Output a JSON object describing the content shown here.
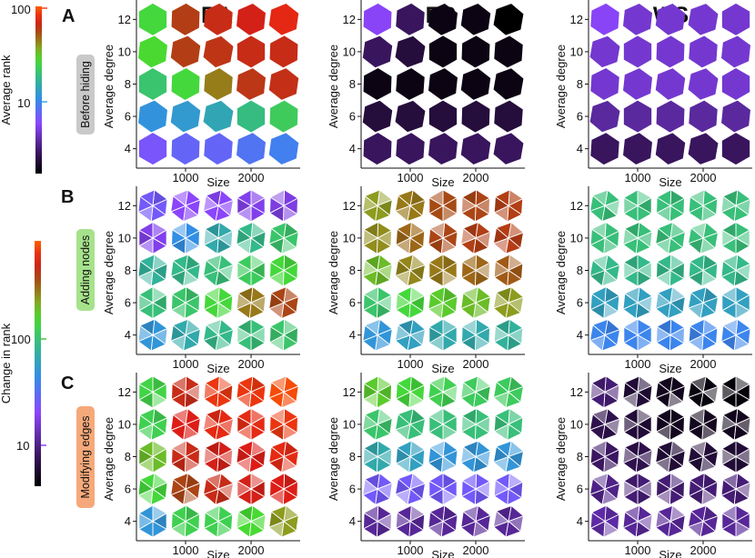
{
  "figure": {
    "column_titles": [
      "BA",
      "ER",
      "WS"
    ],
    "row_letters": [
      "A",
      "B",
      "C"
    ],
    "row_tags": [
      "Before hiding",
      "Adding nodes",
      "Modifying edges"
    ],
    "row_tag_colors": [
      "#c9c9c9",
      "#a6e28c",
      "#f5a97a"
    ],
    "x_label": "Size",
    "y_label": "Average degree",
    "x_ticks": [
      "1000",
      "2000"
    ],
    "y_ticks": [
      "4",
      "6",
      "8",
      "10",
      "12"
    ]
  },
  "colorbars": [
    {
      "label": "Average rank",
      "tick_labels": [
        "100",
        "10"
      ],
      "scale": "log",
      "range": [
        1.8,
        110
      ]
    },
    {
      "label": "Change in rank",
      "tick_labels": [
        "100",
        "10"
      ],
      "scale": "log",
      "range": [
        4,
        900
      ]
    }
  ],
  "chart_data": {
    "type": "heatmap",
    "x": [
      500,
      1000,
      1500,
      2000,
      2500
    ],
    "y": [
      4,
      6,
      8,
      10,
      12
    ],
    "cell_shape": "hexagon",
    "note_rows": "values listed from top row (degree 12) to bottom row (degree 4)",
    "panels": [
      {
        "row": "Before hiding",
        "network": "BA",
        "colorbar": "Average rank",
        "values": [
          [
            28,
            62,
            70,
            75,
            85
          ],
          [
            30,
            62,
            66,
            70,
            70
          ],
          [
            22,
            28,
            47,
            65,
            68
          ],
          [
            12,
            13,
            15,
            20,
            24
          ],
          [
            7,
            8,
            8,
            9,
            10
          ]
        ]
      },
      {
        "row": "Before hiding",
        "network": "ER",
        "colorbar": "Average rank",
        "values": [
          [
            6,
            3,
            2,
            2,
            1.8
          ],
          [
            3,
            2.5,
            2,
            2,
            2
          ],
          [
            2,
            2,
            2,
            2,
            2
          ],
          [
            2.5,
            2.5,
            2.5,
            2.5,
            2.5
          ],
          [
            3,
            3,
            3,
            3,
            3
          ]
        ]
      },
      {
        "row": "Before hiding",
        "network": "WS",
        "colorbar": "Average rank",
        "values": [
          [
            6,
            5,
            5,
            5,
            5
          ],
          [
            5,
            5,
            5,
            5,
            5
          ],
          [
            5,
            5,
            5,
            5,
            5
          ],
          [
            4,
            4,
            4,
            4,
            4
          ],
          [
            3,
            3,
            3,
            3,
            3
          ]
        ]
      },
      {
        "row": "Adding nodes",
        "network": "BA",
        "colorbar": "Change in rank",
        "values": [
          [
            25,
            20,
            20,
            18,
            17
          ],
          [
            18,
            45,
            70,
            90,
            110
          ],
          [
            80,
            90,
            100,
            120,
            150
          ],
          [
            100,
            110,
            150,
            300,
            400
          ],
          [
            50,
            70,
            90,
            100,
            110
          ]
        ]
      },
      {
        "row": "Adding nodes",
        "network": "ER",
        "colorbar": "Change in rank",
        "values": [
          [
            250,
            300,
            380,
            400,
            420
          ],
          [
            270,
            330,
            400,
            420,
            430
          ],
          [
            200,
            280,
            300,
            330,
            350
          ],
          [
            110,
            150,
            180,
            200,
            250
          ],
          [
            50,
            60,
            70,
            70,
            80
          ]
        ]
      },
      {
        "row": "Adding nodes",
        "network": "WS",
        "colorbar": "Change in rank",
        "values": [
          [
            100,
            100,
            100,
            100,
            100
          ],
          [
            100,
            100,
            100,
            100,
            100
          ],
          [
            90,
            90,
            90,
            90,
            90
          ],
          [
            60,
            60,
            60,
            60,
            60
          ],
          [
            40,
            40,
            40,
            40,
            40
          ]
        ]
      },
      {
        "row": "Modifying edges",
        "network": "BA",
        "colorbar": "Change in rank",
        "values": [
          [
            140,
            500,
            700,
            700,
            800
          ],
          [
            130,
            600,
            650,
            650,
            700
          ],
          [
            200,
            500,
            550,
            600,
            650
          ],
          [
            150,
            400,
            500,
            550,
            600
          ],
          [
            50,
            130,
            130,
            160,
            250
          ]
        ]
      },
      {
        "row": "Modifying edges",
        "network": "ER",
        "colorbar": "Change in rank",
        "values": [
          [
            180,
            150,
            130,
            120,
            120
          ],
          [
            110,
            100,
            100,
            100,
            100
          ],
          [
            70,
            60,
            50,
            50,
            50
          ],
          [
            25,
            25,
            25,
            25,
            25
          ],
          [
            11,
            11,
            11,
            11,
            11
          ]
        ]
      },
      {
        "row": "Modifying edges",
        "network": "WS",
        "colorbar": "Change in rank",
        "values": [
          [
            9,
            6,
            5,
            4.5,
            4.3
          ],
          [
            7,
            6,
            5,
            5,
            5
          ],
          [
            8,
            7,
            6,
            6,
            6
          ],
          [
            10,
            9,
            9,
            9,
            9
          ],
          [
            12,
            11,
            11,
            11,
            11
          ]
        ]
      }
    ]
  }
}
